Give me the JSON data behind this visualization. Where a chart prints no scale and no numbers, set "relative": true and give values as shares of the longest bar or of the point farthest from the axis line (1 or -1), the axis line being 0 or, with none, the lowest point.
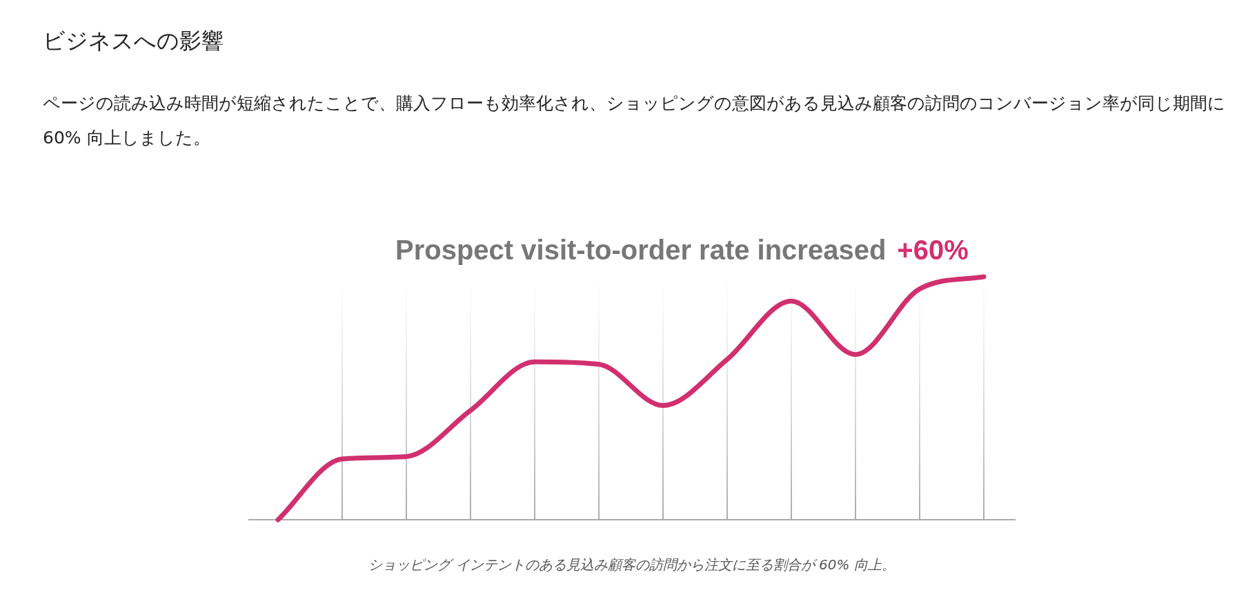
{
  "chart_data": {
    "type": "line",
    "title": "Prospect visit-to-order rate increased",
    "annotations": [
      "ビジネスへの影響",
      "ページの読み込み時間が短縮されたことで、購入フローも効率化され、ショッピングの意図がある見込み顧客の訪問のコンバージョン率が同じ期間に 60% 向上しました。",
      "+60%",
      "ショッピング インテントのある見込み顧客の訪問から注文に至る割合が 60% 向上。"
    ],
    "categories": [
      null,
      null,
      null,
      null,
      null,
      null,
      null,
      null,
      null,
      null,
      null,
      null
    ],
    "relative": true,
    "grid": "x",
    "marker": "none",
    "line_style": "solid",
    "legend": false,
    "series": [
      {
        "color": "#d1306f",
        "values": [
          0,
          0.25,
          0.26,
          0.45,
          0.65,
          0.64,
          0.47,
          0.66,
          0.9,
          0.68,
          0.95,
          1
        ]
      }
    ]
  }
}
